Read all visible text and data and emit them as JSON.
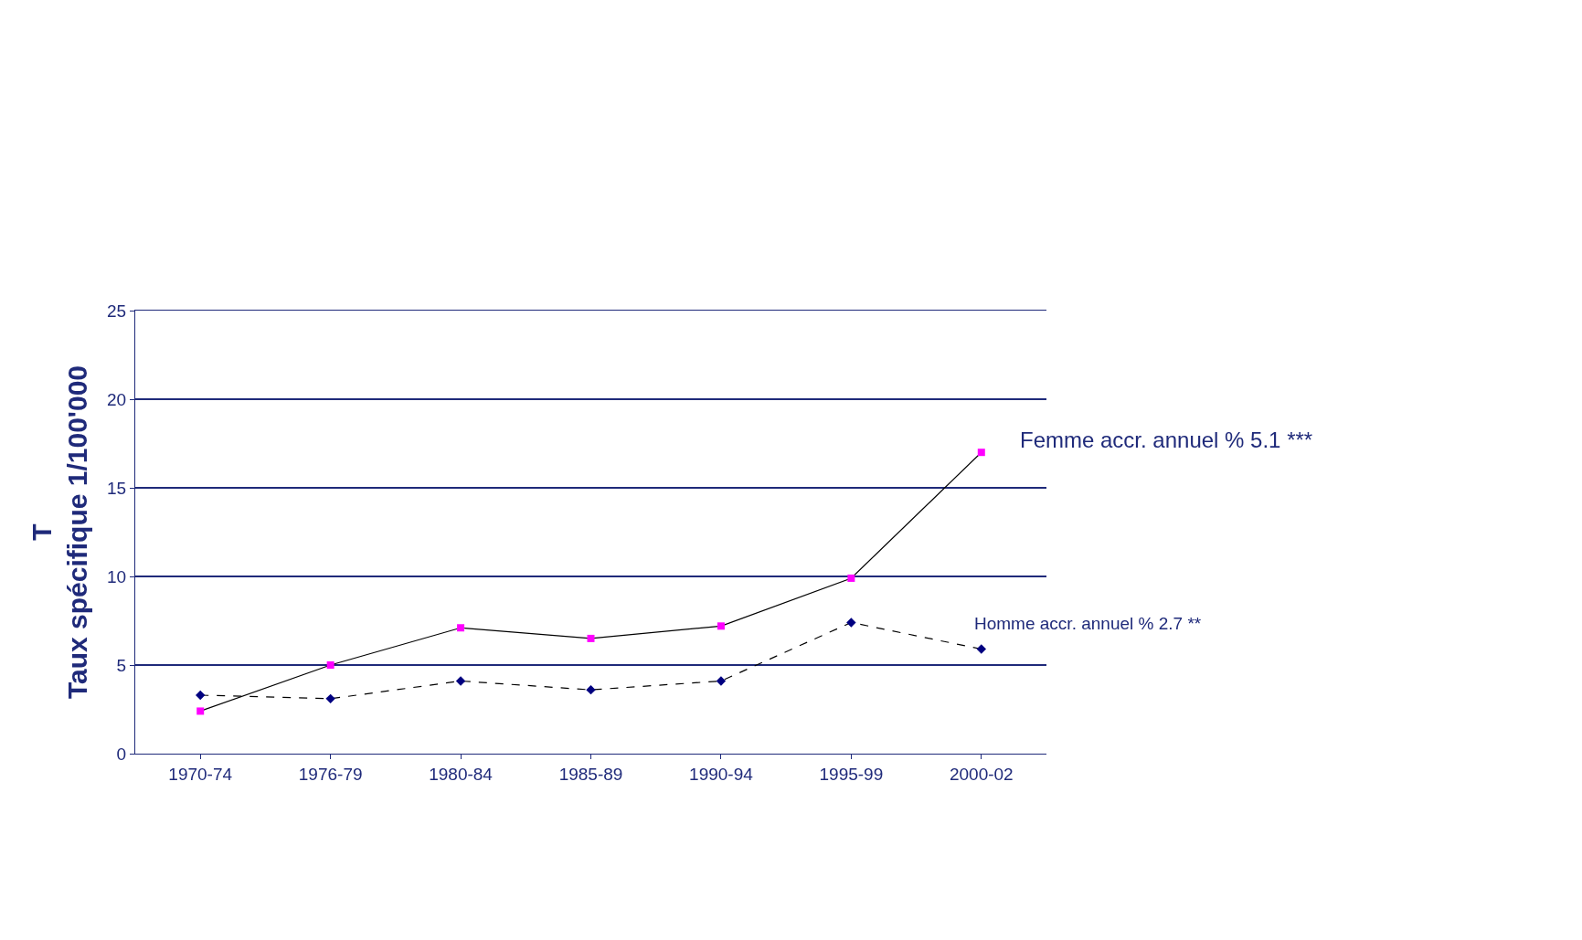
{
  "chart_data": {
    "type": "line",
    "ylabel": "T\nTaux spécifique 1/100'000",
    "categories": [
      "1970-74",
      "1976-79",
      "1980-84",
      "1985-89",
      "1990-94",
      "1995-99",
      "2000-02"
    ],
    "series": [
      {
        "name": "Femme accr. annuel % 5.1 ***",
        "color": "#ff00ff",
        "marker": "square",
        "line_style": "solid",
        "values": [
          2.4,
          5.0,
          7.1,
          6.5,
          7.2,
          9.9,
          17.0
        ]
      },
      {
        "name": "Homme accr. annuel % 2.7 **",
        "color": "#000080",
        "marker": "diamond",
        "line_style": "dashed",
        "values": [
          3.3,
          3.1,
          4.1,
          3.6,
          4.1,
          7.4,
          5.9
        ]
      }
    ],
    "ylim": [
      0,
      25
    ],
    "yticks": [
      0,
      5,
      10,
      15,
      20,
      25
    ],
    "grid": "y",
    "legend": false
  }
}
